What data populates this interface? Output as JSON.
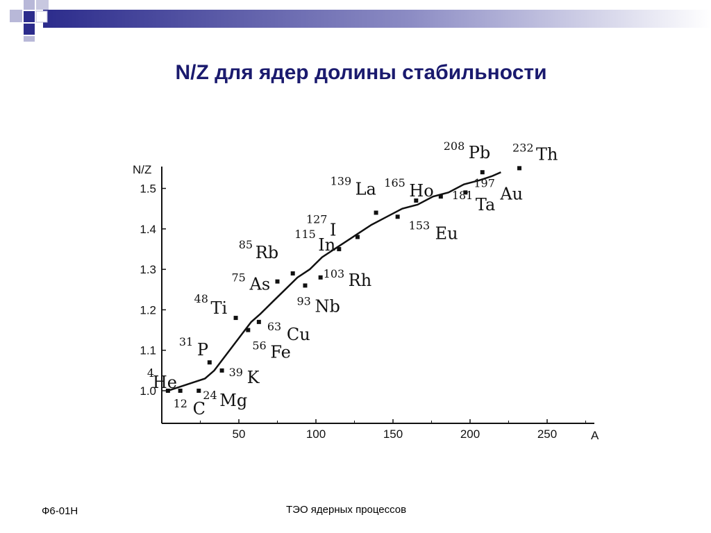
{
  "slide": {
    "title": "N/Z для ядер долины стабильности",
    "footer_left": "Ф6-01Н",
    "footer_center": "ТЭО ядерных процессов"
  },
  "colors": {
    "title": "#1a1a6e",
    "decor_dark": "#2c2c8c",
    "decor_light": "#b8b8d8",
    "curve": "#111111"
  },
  "chart_data": {
    "type": "scatter",
    "title": "",
    "xlabel": "A",
    "ylabel": "N/Z",
    "xlim": [
      0,
      280
    ],
    "ylim": [
      0.93,
      1.58
    ],
    "xticks": [
      50,
      100,
      150,
      200,
      250
    ],
    "yticks": [
      1.0,
      1.1,
      1.2,
      1.3,
      1.4,
      1.5
    ],
    "ytick_labels": [
      "1.0",
      "1.1",
      "1.2",
      "1.3",
      "1.4",
      "1.5"
    ],
    "grid": false,
    "curve": {
      "x": [
        4,
        12,
        20,
        28,
        34,
        40,
        46,
        52,
        58,
        64,
        72,
        80,
        88,
        96,
        104,
        112,
        120,
        128,
        136,
        146,
        156,
        166,
        176,
        186,
        196,
        206,
        214,
        220
      ],
      "y": [
        1.0,
        1.01,
        1.02,
        1.03,
        1.05,
        1.08,
        1.11,
        1.14,
        1.17,
        1.19,
        1.22,
        1.25,
        1.28,
        1.3,
        1.33,
        1.35,
        1.37,
        1.39,
        1.41,
        1.43,
        1.45,
        1.46,
        1.48,
        1.49,
        1.51,
        1.52,
        1.53,
        1.54
      ]
    },
    "points": [
      {
        "mass": "4",
        "element": "He",
        "x": 4,
        "y": 1.0
      },
      {
        "mass": "12",
        "element": "C",
        "x": 12,
        "y": 1.0
      },
      {
        "mass": "24",
        "element": "Mg",
        "x": 24,
        "y": 1.0
      },
      {
        "mass": "31",
        "element": "P",
        "x": 31,
        "y": 1.07
      },
      {
        "mass": "39",
        "element": "K",
        "x": 39,
        "y": 1.05
      },
      {
        "mass": "48",
        "element": "Ti",
        "x": 48,
        "y": 1.18
      },
      {
        "mass": "56",
        "element": "Fe",
        "x": 56,
        "y": 1.15
      },
      {
        "mass": "63",
        "element": "Cu",
        "x": 63,
        "y": 1.17
      },
      {
        "mass": "75",
        "element": "As",
        "x": 75,
        "y": 1.27
      },
      {
        "mass": "85",
        "element": "Rb",
        "x": 85,
        "y": 1.29
      },
      {
        "mass": "93",
        "element": "Nb",
        "x": 93,
        "y": 1.26
      },
      {
        "mass": "103",
        "element": "Rh",
        "x": 103,
        "y": 1.28
      },
      {
        "mass": "115",
        "element": "In",
        "x": 115,
        "y": 1.35
      },
      {
        "mass": "127",
        "element": "I",
        "x": 127,
        "y": 1.38
      },
      {
        "mass": "139",
        "element": "La",
        "x": 139,
        "y": 1.44
      },
      {
        "mass": "153",
        "element": "Eu",
        "x": 153,
        "y": 1.43
      },
      {
        "mass": "165",
        "element": "Ho",
        "x": 165,
        "y": 1.47
      },
      {
        "mass": "181",
        "element": "Ta",
        "x": 181,
        "y": 1.48
      },
      {
        "mass": "197",
        "element": "Au",
        "x": 197,
        "y": 1.49
      },
      {
        "mass": "208",
        "element": "Pb",
        "x": 208,
        "y": 1.54
      },
      {
        "mass": "232",
        "element": "Th",
        "x": 232,
        "y": 1.55
      }
    ]
  }
}
